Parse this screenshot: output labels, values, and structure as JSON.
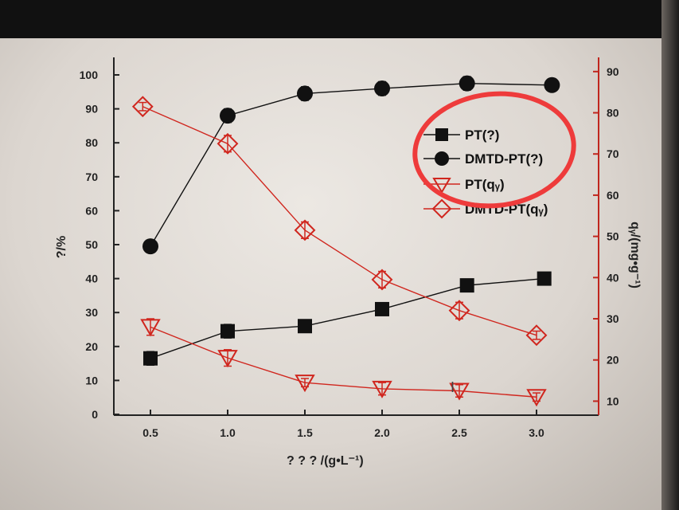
{
  "chart_data": {
    "type": "line",
    "xlabel": "? ? ? /(g•L⁻¹)",
    "ylabel_left": "?/%",
    "ylabel_right": "qᵧ/(mg•g⁻¹)",
    "x_ticks": [
      "0.5",
      "1.0",
      "1.5",
      "2.0",
      "2.5",
      "3.0"
    ],
    "y_left_ticks": [
      "0",
      "10",
      "20",
      "30",
      "40",
      "50",
      "60",
      "70",
      "80",
      "90",
      "100"
    ],
    "y_right_ticks": [
      "10",
      "20",
      "30",
      "40",
      "50",
      "60",
      "70",
      "80",
      "90"
    ],
    "xlim": [
      0.25,
      3.3
    ],
    "ylim_left": [
      0,
      105
    ],
    "ylim_right": [
      5,
      90
    ],
    "legend_position": "top-right",
    "series": [
      {
        "name": "PT(?)",
        "axis": "left",
        "marker": "square",
        "color": "#111111",
        "x": [
          0.5,
          1.0,
          1.5,
          2.0,
          2.55,
          3.05
        ],
        "y": [
          16.5,
          24.5,
          26,
          31,
          38,
          40
        ],
        "err": [
          2,
          2,
          1,
          1,
          1,
          1
        ]
      },
      {
        "name": "DMTD-PT(?)",
        "axis": "left",
        "marker": "circle",
        "color": "#111111",
        "x": [
          0.5,
          1.0,
          1.5,
          2.0,
          2.55,
          3.1
        ],
        "y": [
          49.5,
          88,
          94.5,
          96,
          97.5,
          97
        ],
        "err": [
          1,
          2,
          2,
          2,
          2,
          1
        ]
      },
      {
        "name": "PT(qᵧ)",
        "axis": "right",
        "marker": "triangle-down",
        "color": "#d0261e",
        "x": [
          0.5,
          1.0,
          1.5,
          2.0,
          2.5,
          3.0
        ],
        "y": [
          28,
          20.5,
          14.5,
          13,
          12.5,
          11
        ],
        "err": [
          2,
          2,
          1,
          1.5,
          1.5,
          1
        ]
      },
      {
        "name": "DMTD-PT(qᵧ)",
        "axis": "right",
        "marker": "diamond",
        "color": "#d0261e",
        "x": [
          0.45,
          1.0,
          1.5,
          2.0,
          2.5,
          3.0
        ],
        "y": [
          81.5,
          72.5,
          51.5,
          39.5,
          32,
          26
        ],
        "err": [
          1,
          2,
          2,
          2,
          2,
          1
        ]
      }
    ]
  }
}
